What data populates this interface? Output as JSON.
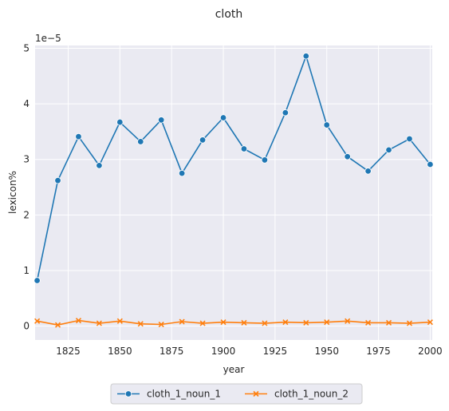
{
  "chart_data": {
    "type": "line",
    "title": "cloth",
    "xlabel": "year",
    "ylabel": "lexicon%",
    "y_offset_label": "1e−5",
    "x": [
      1810,
      1820,
      1830,
      1840,
      1850,
      1860,
      1870,
      1880,
      1890,
      1900,
      1910,
      1920,
      1930,
      1940,
      1950,
      1960,
      1970,
      1980,
      1990,
      2000
    ],
    "xlim": [
      1809,
      2001
    ],
    "ylim": [
      -0.25,
      5.05
    ],
    "xticks": [
      1825,
      1850,
      1875,
      1900,
      1925,
      1950,
      1975,
      2000
    ],
    "yticks": [
      0,
      1,
      2,
      3,
      4,
      5
    ],
    "series": [
      {
        "name": "cloth_1_noun_1",
        "color": "#1f77b4",
        "marker": "circle",
        "values": [
          0.82,
          2.62,
          3.41,
          2.89,
          3.67,
          3.32,
          3.71,
          2.75,
          3.35,
          3.75,
          3.19,
          2.99,
          3.84,
          4.86,
          3.62,
          3.05,
          2.79,
          3.17,
          3.37,
          2.91
        ]
      },
      {
        "name": "cloth_1_noun_2",
        "color": "#ff7f0e",
        "marker": "x",
        "values": [
          0.09,
          0.02,
          0.1,
          0.05,
          0.09,
          0.04,
          0.03,
          0.08,
          0.05,
          0.07,
          0.06,
          0.05,
          0.07,
          0.06,
          0.07,
          0.09,
          0.06,
          0.06,
          0.05,
          0.07
        ]
      }
    ],
    "grid": true,
    "background": "#eaeaf2",
    "legend_position": "bottom-center"
  }
}
